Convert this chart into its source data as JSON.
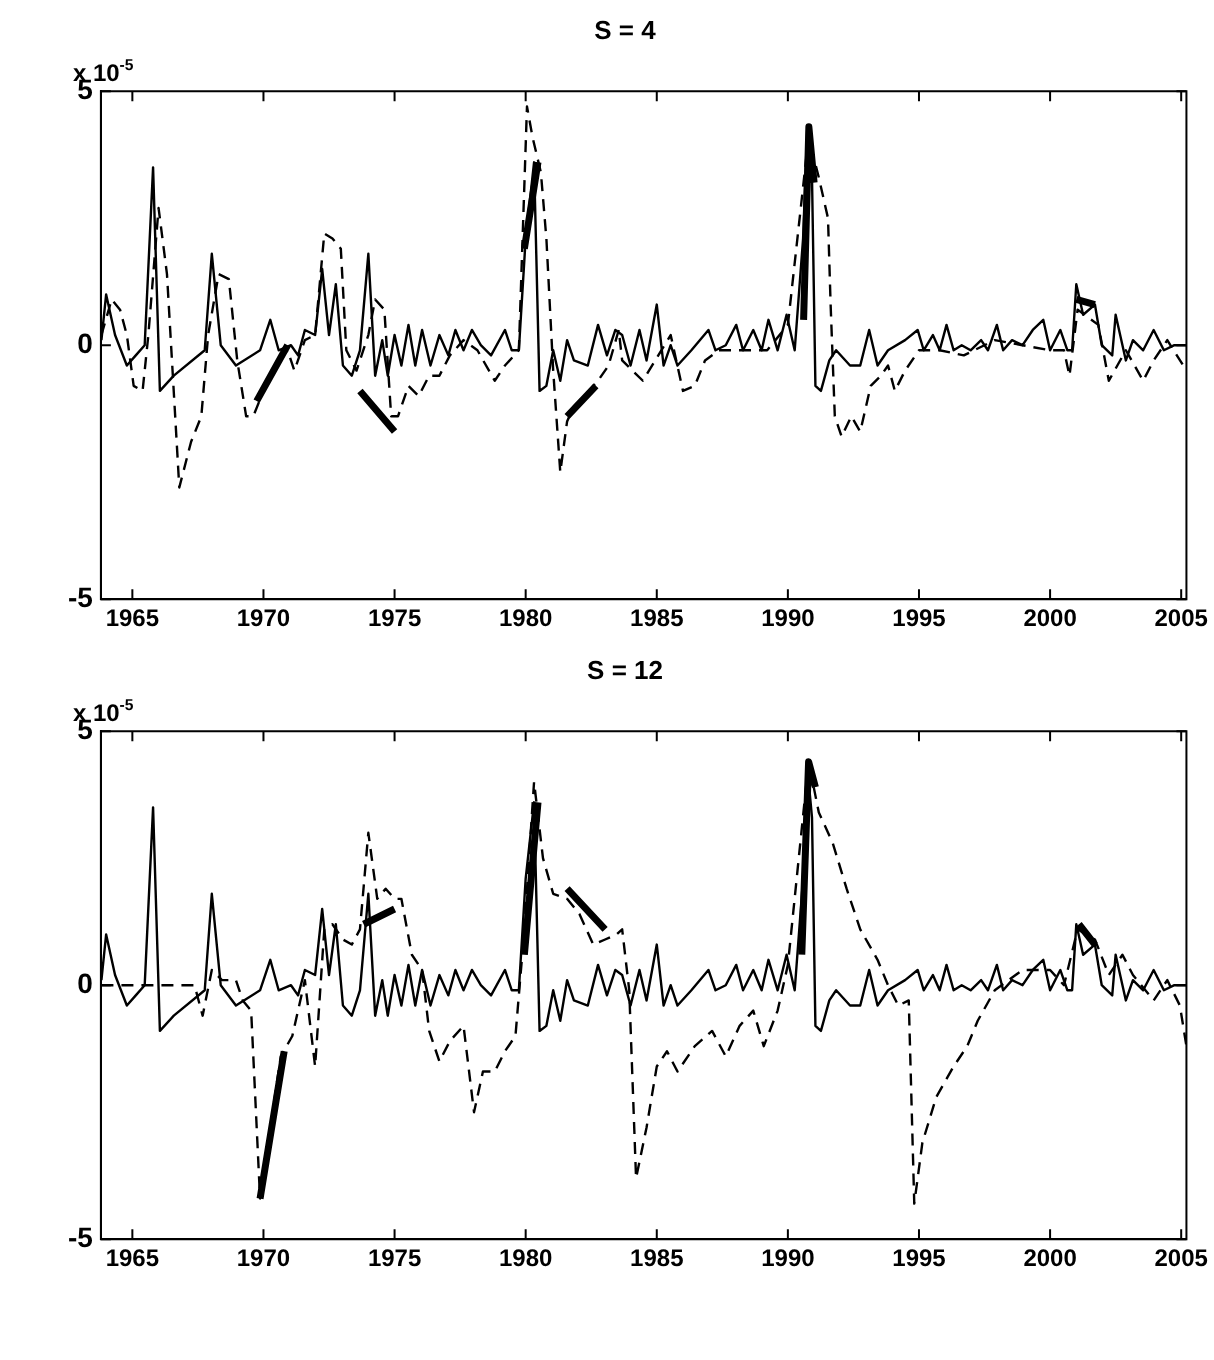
{
  "chart_data": [
    {
      "type": "line",
      "title": "S = 4",
      "annotations": [
        "x 10$^{-5}$"
      ],
      "xlim": [
        1963.8,
        2005.2
      ],
      "xticks": [
        1965,
        1970,
        1975,
        1980,
        1985,
        1990,
        1995,
        2000,
        2005
      ],
      "ylim": [
        -5,
        5
      ],
      "yticks": [
        -5,
        0,
        5
      ],
      "grid": false,
      "legend": false,
      "marker": "none",
      "series": [
        {
          "color": "#000000",
          "line_style": "solid",
          "x": [
            1963.82,
            1964.0,
            1964.34,
            1964.79,
            1965.13,
            1965.47,
            1965.79,
            1966.05,
            1966.58,
            1967.76,
            1968.03,
            1968.37,
            1968.95,
            1969.87,
            1970.26,
            1970.58,
            1971.05,
            1971.32,
            1971.58,
            1971.97,
            1972.24,
            1972.5,
            1972.76,
            1973.03,
            1973.37,
            1973.68,
            1974.0,
            1974.26,
            1974.53,
            1974.74,
            1975.0,
            1975.26,
            1975.53,
            1975.79,
            1976.05,
            1976.37,
            1976.71,
            1977.05,
            1977.32,
            1977.63,
            1977.95,
            1978.29,
            1978.68,
            1979.21,
            1979.47,
            1979.74,
            1980.0,
            1980.32,
            1980.53,
            1980.79,
            1981.05,
            1981.32,
            1981.58,
            1981.84,
            1982.37,
            1982.76,
            1983.1,
            1983.42,
            1983.68,
            1984.0,
            1984.34,
            1984.61,
            1985.0,
            1985.26,
            1985.53,
            1985.79,
            1986.32,
            1986.97,
            1987.24,
            1987.63,
            1988.03,
            1988.29,
            1988.68,
            1989.0,
            1989.26,
            1989.61,
            1989.95,
            1990.26,
            1990.58,
            1990.74,
            1990.92,
            1991.05,
            1991.26,
            1991.58,
            1991.84,
            1992.37,
            1992.76,
            1993.1,
            1993.42,
            1993.82,
            1994.47,
            1994.95,
            1995.18,
            1995.53,
            1995.79,
            1996.05,
            1996.32,
            1996.63,
            1996.97,
            1997.37,
            1997.63,
            1997.97,
            1998.21,
            1998.55,
            1998.95,
            1999.34,
            1999.74,
            2000.0,
            2000.39,
            2000.66,
            2000.84,
            2001.0,
            2001.26,
            2001.71,
            2001.97,
            2002.37,
            2002.5,
            2002.89,
            2003.16,
            2003.55,
            2003.95,
            2004.34,
            2004.74,
            2005.2
          ],
          "values": [
            0.1,
            1.0,
            0.2,
            -0.4,
            -0.2,
            0.0,
            3.5,
            -0.9,
            -0.6,
            -0.1,
            1.8,
            0.0,
            -0.4,
            -0.1,
            0.5,
            -0.1,
            0.0,
            -0.2,
            0.3,
            0.2,
            1.5,
            0.2,
            1.2,
            -0.4,
            -0.6,
            -0.1,
            1.8,
            -0.6,
            0.1,
            -0.6,
            0.2,
            -0.4,
            0.4,
            -0.4,
            0.3,
            -0.4,
            0.2,
            -0.2,
            0.3,
            -0.1,
            0.3,
            0.0,
            -0.2,
            0.3,
            -0.1,
            -0.1,
            2.1,
            3.6,
            -0.9,
            -0.8,
            -0.1,
            -0.7,
            0.1,
            -0.3,
            -0.4,
            0.4,
            -0.2,
            0.3,
            0.2,
            -0.4,
            0.3,
            -0.3,
            0.8,
            -0.4,
            0.0,
            -0.4,
            -0.1,
            0.3,
            -0.1,
            0.0,
            0.4,
            -0.1,
            0.3,
            -0.1,
            0.5,
            -0.1,
            0.6,
            -0.1,
            2.1,
            4.3,
            3.3,
            -0.8,
            -0.9,
            -0.3,
            -0.1,
            -0.4,
            -0.4,
            0.3,
            -0.4,
            -0.1,
            0.1,
            0.3,
            -0.1,
            0.2,
            -0.1,
            0.4,
            -0.1,
            0.0,
            -0.1,
            0.1,
            -0.1,
            0.4,
            -0.1,
            0.1,
            0.0,
            0.3,
            0.5,
            -0.1,
            0.3,
            -0.1,
            -0.1,
            1.2,
            0.6,
            0.8,
            0.0,
            -0.2,
            0.6,
            -0.3,
            0.1,
            -0.1,
            0.3,
            -0.1,
            0.0,
            0.0
          ]
        },
        {
          "color": "#000000",
          "line_style": "dashed",
          "x": [
            1963.82,
            1964.21,
            1964.53,
            1964.79,
            1965.05,
            1965.39,
            1965.61,
            1966.0,
            1966.32,
            1966.79,
            1967.24,
            1967.63,
            1967.89,
            1968.29,
            1968.68,
            1969.0,
            1969.34,
            1969.61,
            1970.0,
            1970.53,
            1970.92,
            1971.18,
            1971.58,
            1971.97,
            1972.32,
            1972.63,
            1972.95,
            1973.16,
            1973.55,
            1974.0,
            1974.26,
            1974.61,
            1974.87,
            1975.13,
            1975.53,
            1975.92,
            1976.32,
            1976.71,
            1977.11,
            1977.63,
            1978.16,
            1978.82,
            1979.21,
            1979.74,
            1980.05,
            1980.26,
            1980.58,
            1980.79,
            1981.05,
            1981.32,
            1981.58,
            1981.84,
            1982.24,
            1982.76,
            1983.16,
            1983.55,
            1983.68,
            1984.47,
            1985.53,
            1986.0,
            1986.45,
            1986.84,
            1987.37,
            1988.42,
            1989.21,
            1990.0,
            1990.79,
            1991.18,
            1991.53,
            1991.63,
            1991.79,
            1992.05,
            1992.42,
            1992.76,
            1993.16,
            1993.55,
            1993.82,
            1994.08,
            1994.47,
            1995.0,
            1995.79,
            1996.71,
            1997.89,
            1998.95,
            2000.0,
            2000.53,
            2000.74,
            2001.05,
            2001.84,
            2002.24,
            2002.89,
            2003.55,
            2003.95,
            2004.47,
            2005.2
          ],
          "values": [
            0.2,
            0.9,
            0.7,
            0.2,
            -0.8,
            -0.9,
            0.2,
            2.7,
            1.4,
            -2.8,
            -1.9,
            -1.4,
            0.2,
            1.4,
            1.3,
            -0.3,
            -1.4,
            -1.4,
            -0.9,
            -0.3,
            -0.1,
            -0.5,
            0.1,
            0.2,
            2.2,
            2.1,
            1.9,
            -0.1,
            -0.5,
            0.2,
            0.9,
            0.7,
            -1.4,
            -1.4,
            -0.8,
            -1.0,
            -0.6,
            -0.6,
            -0.2,
            0.1,
            -0.1,
            -0.7,
            -0.4,
            -0.1,
            4.7,
            4.1,
            3.4,
            2.1,
            -0.5,
            -2.5,
            -1.5,
            -1.2,
            -1.0,
            -0.7,
            -0.4,
            0.3,
            -0.3,
            -0.7,
            0.2,
            -0.9,
            -0.8,
            -0.3,
            -0.1,
            -0.1,
            -0.1,
            0.4,
            4.1,
            3.3,
            2.5,
            0.8,
            -1.4,
            -1.8,
            -1.4,
            -1.7,
            -0.8,
            -0.6,
            -0.4,
            -0.9,
            -0.5,
            -0.1,
            -0.1,
            -0.2,
            0.1,
            0.0,
            -0.1,
            -0.1,
            -0.6,
            0.7,
            0.4,
            -0.7,
            -0.1,
            -0.7,
            -0.3,
            0.1,
            -0.5
          ]
        },
        {
          "color": "#000000",
          "line_style": "solid",
          "x": [
            1969.74,
            1970.92,
            1971.0,
            1973.68,
            1975.0,
            1975.1,
            1979.95,
            1980.47,
            1980.6,
            1981.58,
            1982.68,
            1982.8,
            1990.6,
            1990.8,
            1991.0,
            1991.1,
            2001.0,
            2001.71
          ],
          "values": [
            -1.1,
            0.0,
            null,
            -0.9,
            -1.7,
            null,
            1.9,
            3.6,
            null,
            -1.4,
            -0.8,
            null,
            0.5,
            4.3,
            3.2,
            null,
            0.9,
            0.8
          ]
        }
      ]
    },
    {
      "type": "line",
      "title": "S = 12",
      "annotations": [
        "x 10$^{-5}$"
      ],
      "xlim": [
        1963.8,
        2005.2
      ],
      "xticks": [
        1965,
        1970,
        1975,
        1980,
        1985,
        1990,
        1995,
        2000,
        2005
      ],
      "ylim": [
        -5,
        5
      ],
      "yticks": [
        -5,
        0,
        5
      ],
      "grid": false,
      "legend": false,
      "marker": "none",
      "series": [
        {
          "color": "#000000",
          "line_style": "solid",
          "x": [
            1963.82,
            1964.0,
            1964.34,
            1964.79,
            1965.13,
            1965.47,
            1965.79,
            1966.05,
            1966.58,
            1967.76,
            1968.03,
            1968.37,
            1968.95,
            1969.87,
            1970.26,
            1970.58,
            1971.05,
            1971.32,
            1971.58,
            1971.97,
            1972.24,
            1972.5,
            1972.76,
            1973.03,
            1973.37,
            1973.68,
            1974.0,
            1974.26,
            1974.53,
            1974.74,
            1975.0,
            1975.26,
            1975.53,
            1975.79,
            1976.05,
            1976.37,
            1976.71,
            1977.05,
            1977.32,
            1977.63,
            1977.95,
            1978.29,
            1978.68,
            1979.21,
            1979.47,
            1979.74,
            1980.0,
            1980.32,
            1980.53,
            1980.79,
            1981.05,
            1981.32,
            1981.58,
            1981.84,
            1982.37,
            1982.76,
            1983.1,
            1983.42,
            1983.68,
            1984.0,
            1984.34,
            1984.61,
            1985.0,
            1985.26,
            1985.53,
            1985.79,
            1986.32,
            1986.97,
            1987.24,
            1987.63,
            1988.03,
            1988.29,
            1988.68,
            1989.0,
            1989.26,
            1989.61,
            1989.95,
            1990.26,
            1990.58,
            1990.74,
            1990.92,
            1991.05,
            1991.26,
            1991.58,
            1991.84,
            1992.37,
            1992.76,
            1993.1,
            1993.42,
            1993.82,
            1994.47,
            1994.95,
            1995.18,
            1995.53,
            1995.79,
            1996.05,
            1996.32,
            1996.63,
            1996.97,
            1997.37,
            1997.63,
            1997.97,
            1998.21,
            1998.55,
            1998.95,
            1999.34,
            1999.74,
            2000.0,
            2000.39,
            2000.66,
            2000.84,
            2001.0,
            2001.26,
            2001.71,
            2001.97,
            2002.37,
            2002.5,
            2002.89,
            2003.16,
            2003.55,
            2003.95,
            2004.34,
            2004.74,
            2005.2
          ],
          "values": [
            0.1,
            1.0,
            0.2,
            -0.4,
            -0.2,
            0.0,
            3.5,
            -0.9,
            -0.6,
            -0.1,
            1.8,
            0.0,
            -0.4,
            -0.1,
            0.5,
            -0.1,
            0.0,
            -0.2,
            0.3,
            0.2,
            1.5,
            0.2,
            1.2,
            -0.4,
            -0.6,
            -0.1,
            1.8,
            -0.6,
            0.1,
            -0.6,
            0.2,
            -0.4,
            0.4,
            -0.4,
            0.3,
            -0.4,
            0.2,
            -0.2,
            0.3,
            -0.1,
            0.3,
            0.0,
            -0.2,
            0.3,
            -0.1,
            -0.1,
            2.1,
            3.6,
            -0.9,
            -0.8,
            -0.1,
            -0.7,
            0.1,
            -0.3,
            -0.4,
            0.4,
            -0.2,
            0.3,
            0.2,
            -0.4,
            0.3,
            -0.3,
            0.8,
            -0.4,
            0.0,
            -0.4,
            -0.1,
            0.3,
            -0.1,
            0.0,
            0.4,
            -0.1,
            0.3,
            -0.1,
            0.5,
            -0.1,
            0.6,
            -0.1,
            2.1,
            4.3,
            3.3,
            -0.8,
            -0.9,
            -0.3,
            -0.1,
            -0.4,
            -0.4,
            0.3,
            -0.4,
            -0.1,
            0.1,
            0.3,
            -0.1,
            0.2,
            -0.1,
            0.4,
            -0.1,
            0.0,
            -0.1,
            0.1,
            -0.1,
            0.4,
            -0.1,
            0.1,
            0.0,
            0.3,
            0.5,
            -0.1,
            0.3,
            -0.1,
            -0.1,
            1.2,
            0.6,
            0.8,
            0.0,
            -0.2,
            0.6,
            -0.3,
            0.1,
            -0.1,
            0.3,
            -0.1,
            0.0,
            0.0
          ]
        },
        {
          "color": "#000000",
          "line_style": "dashed",
          "x": [
            1963.82,
            1967.37,
            1967.68,
            1968.03,
            1968.42,
            1968.95,
            1969.21,
            1969.53,
            1969.87,
            1970.26,
            1970.66,
            1971.1,
            1971.58,
            1971.97,
            1972.32,
            1972.63,
            1973.03,
            1973.37,
            1973.68,
            1974.0,
            1974.34,
            1974.66,
            1975.0,
            1975.26,
            1975.66,
            1976.05,
            1976.32,
            1976.71,
            1977.11,
            1977.63,
            1978.03,
            1978.37,
            1978.82,
            1979.21,
            1979.61,
            1979.95,
            1980.32,
            1980.66,
            1981.05,
            1981.58,
            1982.05,
            1982.58,
            1983.03,
            1983.47,
            1983.68,
            1983.95,
            1984.21,
            1984.61,
            1985.0,
            1985.39,
            1985.79,
            1986.45,
            1987.11,
            1987.63,
            1988.16,
            1988.68,
            1989.08,
            1989.61,
            1990.0,
            1990.79,
            1991.18,
            1991.71,
            1992.24,
            1992.76,
            1993.42,
            1993.82,
            1994.21,
            1994.61,
            1994.82,
            1995.13,
            1995.66,
            1996.32,
            1996.84,
            1997.24,
            1997.89,
            1998.95,
            2000.0,
            2000.53,
            2001.05,
            2001.71,
            2002.24,
            2002.76,
            2003.16,
            2003.95,
            2004.47,
            2004.95,
            2005.2
          ],
          "values": [
            0.0,
            0.0,
            -0.6,
            0.3,
            0.1,
            0.1,
            -0.3,
            -0.5,
            -4.2,
            -2.8,
            -1.4,
            -1.0,
            0.1,
            -1.6,
            1.1,
            1.2,
            0.9,
            0.8,
            1.1,
            3.0,
            1.7,
            1.9,
            1.7,
            1.7,
            0.6,
            0.3,
            -0.9,
            -1.5,
            -1.1,
            -0.8,
            -2.5,
            -1.7,
            -1.7,
            -1.3,
            -1.0,
            1.1,
            4.0,
            2.5,
            1.8,
            1.7,
            1.4,
            0.8,
            0.9,
            1.0,
            1.1,
            -0.1,
            -3.8,
            -2.8,
            -1.6,
            -1.3,
            -1.7,
            -1.2,
            -0.9,
            -1.4,
            -0.8,
            -0.5,
            -1.2,
            -0.5,
            0.4,
            4.4,
            3.4,
            2.8,
            1.9,
            1.1,
            0.5,
            0.0,
            -0.4,
            -0.3,
            -4.3,
            -3.1,
            -2.2,
            -1.6,
            -1.2,
            -0.7,
            -0.1,
            0.3,
            0.3,
            0.0,
            1.1,
            0.9,
            0.2,
            0.6,
            0.2,
            -0.3,
            0.1,
            -0.4,
            -1.2
          ]
        },
        {
          "color": "#000000",
          "line_style": "solid",
          "x": [
            1969.87,
            1970.79,
            1970.9,
            1973.82,
            1975.0,
            1975.1,
            1979.95,
            1980.47,
            1980.6,
            1981.58,
            1983.03,
            1983.1,
            1990.53,
            1990.79,
            1991.05,
            1991.1,
            2001.1,
            2001.71
          ],
          "values": [
            -4.2,
            -1.3,
            null,
            1.2,
            1.5,
            null,
            0.6,
            3.6,
            null,
            1.9,
            1.1,
            null,
            0.6,
            4.4,
            3.9,
            null,
            1.2,
            0.8
          ]
        }
      ]
    }
  ]
}
